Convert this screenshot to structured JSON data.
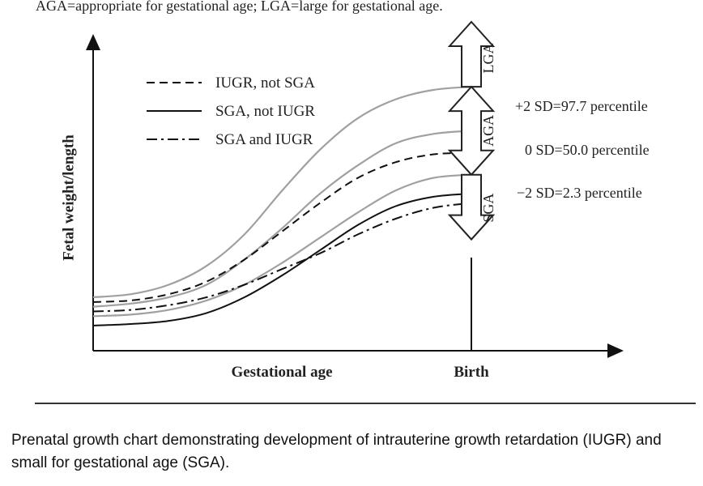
{
  "header": {
    "abbrev_caption": "AGA=appropriate for gestational age; LGA=large for gestational age."
  },
  "chart_data": {
    "type": "line",
    "title": "",
    "xlabel": "Gestational age",
    "ylabel": "Fetal weight/length",
    "x_marker_label": "Birth",
    "x": [
      0,
      0.1,
      0.2,
      0.3,
      0.4,
      0.5,
      0.6,
      0.7,
      0.8,
      0.9,
      1.0
    ],
    "xlim": [
      0,
      1.15
    ],
    "ylim": [
      0,
      1
    ],
    "grid": false,
    "percentile_curves": [
      {
        "name": "+2 SD=97.7 percentile",
        "color": "#a0a0a0",
        "values": [
          0.17,
          0.18,
          0.21,
          0.27,
          0.37,
          0.51,
          0.64,
          0.74,
          0.8,
          0.83,
          0.84
        ]
      },
      {
        "name": "0 SD=50.0 percentile",
        "color": "#a0a0a0",
        "values": [
          0.14,
          0.15,
          0.17,
          0.21,
          0.29,
          0.39,
          0.5,
          0.59,
          0.66,
          0.69,
          0.7
        ]
      },
      {
        "name": "-2 SD=2.3 percentile",
        "color": "#a0a0a0",
        "values": [
          0.11,
          0.115,
          0.13,
          0.16,
          0.21,
          0.28,
          0.36,
          0.44,
          0.51,
          0.55,
          0.56
        ]
      }
    ],
    "series": [
      {
        "name": "IUGR, not SGA",
        "dash": "10 6",
        "values": [
          0.155,
          0.16,
          0.18,
          0.22,
          0.29,
          0.38,
          0.47,
          0.55,
          0.6,
          0.625,
          0.63
        ]
      },
      {
        "name": "SGA, not IUGR",
        "dash": "",
        "values": [
          0.08,
          0.085,
          0.095,
          0.12,
          0.17,
          0.24,
          0.32,
          0.4,
          0.46,
          0.49,
          0.5
        ]
      },
      {
        "name": "SGA and IUGR",
        "dash": "13 5 3 5",
        "values": [
          0.125,
          0.13,
          0.145,
          0.17,
          0.21,
          0.26,
          0.31,
          0.37,
          0.42,
          0.455,
          0.47
        ]
      }
    ],
    "legend": [
      {
        "label": "IUGR, not SGA",
        "dash": "10 6"
      },
      {
        "label": "SGA, not IUGR",
        "dash": ""
      },
      {
        "label": "SGA and IUGR",
        "dash": "13 5 3 5"
      }
    ],
    "legend_position": "top-left",
    "region_arrows": [
      {
        "label": "LGA",
        "direction": "up",
        "from_value": 0.84,
        "to_value": 1.0
      },
      {
        "label": "AGA",
        "direction": "both",
        "from_value": 0.56,
        "to_value": 0.84
      },
      {
        "label": "SGA",
        "direction": "down",
        "from_value": 0.38,
        "to_value": 0.56
      }
    ],
    "annotations": [
      {
        "text": "+2 SD=97.7 percentile",
        "at_value": 0.84
      },
      {
        "text": "0 SD=50.0 percentile",
        "at_value": 0.7
      },
      {
        "text": "−2 SD=2.3 percentile",
        "at_value": 0.56
      }
    ]
  },
  "footer": {
    "figure_caption": "Prenatal growth chart demonstrating development of intrauterine growth retardation (IUGR) and small for gestational age (SGA)."
  }
}
